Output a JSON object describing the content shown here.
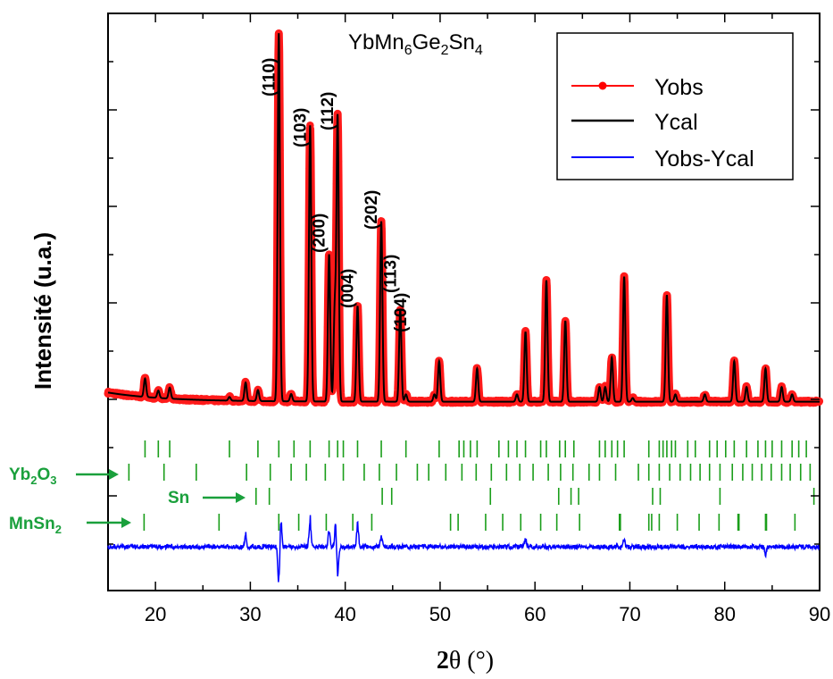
{
  "chart_data": {
    "type": "line",
    "title": "YbMn6Ge2Sn4",
    "title_parts": {
      "base1": "YbMn",
      "sub1": "6",
      "base2": "Ge",
      "sub2": "2",
      "base3": "Sn",
      "sub3": "4"
    },
    "xlabel": "2θ (°)",
    "xlabel_parts": {
      "bold": "2",
      "greek": "θ",
      "rest": " (°)"
    },
    "ylabel": "Intensité (u.a.)",
    "xlim": [
      15,
      90
    ],
    "x_ticks": [
      20,
      30,
      40,
      50,
      60,
      70,
      80,
      90
    ],
    "legend": {
      "position": "top-right",
      "entries": [
        {
          "label": "Yobs",
          "color": "#ff0000"
        },
        {
          "label": "Ycal",
          "color": "#000000"
        },
        {
          "label": "Yobs-Ycal",
          "color": "#0000ff"
        }
      ]
    },
    "background_level": 0.03,
    "peaks": [
      {
        "x": 18.9,
        "y": 0.05
      },
      {
        "x": 20.3,
        "y": 0.02
      },
      {
        "x": 21.5,
        "y": 0.03
      },
      {
        "x": 27.8,
        "y": 0.01
      },
      {
        "x": 29.5,
        "y": 0.05
      },
      {
        "x": 30.8,
        "y": 0.03
      },
      {
        "x": 33.0,
        "y": 1.0
      },
      {
        "x": 34.3,
        "y": 0.02
      },
      {
        "x": 36.3,
        "y": 0.75
      },
      {
        "x": 38.3,
        "y": 0.4
      },
      {
        "x": 38.9,
        "y": 0.25
      },
      {
        "x": 39.2,
        "y": 0.77
      },
      {
        "x": 41.3,
        "y": 0.26
      },
      {
        "x": 43.8,
        "y": 0.49
      },
      {
        "x": 45.8,
        "y": 0.25
      },
      {
        "x": 46.4,
        "y": 0.02
      },
      {
        "x": 49.4,
        "y": 0.02
      },
      {
        "x": 49.9,
        "y": 0.11
      },
      {
        "x": 53.9,
        "y": 0.09
      },
      {
        "x": 58.1,
        "y": 0.02
      },
      {
        "x": 59.0,
        "y": 0.19
      },
      {
        "x": 61.2,
        "y": 0.33
      },
      {
        "x": 63.2,
        "y": 0.22
      },
      {
        "x": 66.8,
        "y": 0.04
      },
      {
        "x": 67.4,
        "y": 0.04
      },
      {
        "x": 68.1,
        "y": 0.12
      },
      {
        "x": 69.4,
        "y": 0.34
      },
      {
        "x": 70.3,
        "y": 0.01
      },
      {
        "x": 73.9,
        "y": 0.29
      },
      {
        "x": 74.8,
        "y": 0.02
      },
      {
        "x": 77.9,
        "y": 0.02
      },
      {
        "x": 81.0,
        "y": 0.11
      },
      {
        "x": 82.3,
        "y": 0.04
      },
      {
        "x": 84.3,
        "y": 0.09
      },
      {
        "x": 86.0,
        "y": 0.04
      },
      {
        "x": 87.1,
        "y": 0.02
      }
    ],
    "peak_labels": [
      {
        "text": "(110)",
        "x": 33.0
      },
      {
        "text": "(103)",
        "x": 36.3
      },
      {
        "text": "(112)",
        "x": 39.2
      },
      {
        "text": "(200)",
        "x": 38.3
      },
      {
        "text": "(004)",
        "x": 41.3
      },
      {
        "text": "(202)",
        "x": 43.8
      },
      {
        "text": "(113)",
        "x": 45.8
      },
      {
        "text": "(104)",
        "x": 46.9
      }
    ],
    "difference_peaks": [
      {
        "x": 29.5,
        "y": 0.03
      },
      {
        "x": 33.0,
        "y": -0.1
      },
      {
        "x": 33.2,
        "y": 0.08
      },
      {
        "x": 36.3,
        "y": 0.07
      },
      {
        "x": 38.3,
        "y": 0.05
      },
      {
        "x": 39.2,
        "y": -0.08
      },
      {
        "x": 39.0,
        "y": 0.06
      },
      {
        "x": 41.3,
        "y": 0.06
      },
      {
        "x": 43.8,
        "y": 0.03
      },
      {
        "x": 59.0,
        "y": 0.02
      },
      {
        "x": 69.4,
        "y": 0.02
      },
      {
        "x": 84.3,
        "y": -0.02
      }
    ],
    "bragg_phases": [
      {
        "label": "",
        "color": "#1a9e1a",
        "positions": [
          18.9,
          20.3,
          21.5,
          27.8,
          30.8,
          33.0,
          34.6,
          36.3,
          38.3,
          39.2,
          39.8,
          41.3,
          43.8,
          46.4,
          49.9,
          52.0,
          52.5,
          53.2,
          53.9,
          56.2,
          57.2,
          58.1,
          59.0,
          60.6,
          61.2,
          62.6,
          63.2,
          64.1,
          66.8,
          67.4,
          68.1,
          68.7,
          69.4,
          72.0,
          73.1,
          73.5,
          73.9,
          74.4,
          74.8,
          76.1,
          76.9,
          78.4,
          79.2,
          80.1,
          81.0,
          82.3,
          83.5,
          84.3,
          85.0,
          86.0,
          87.1,
          87.8,
          88.6
        ]
      },
      {
        "label": "Yb2O3",
        "label_parts": {
          "base1": "Yb",
          "sub1": "2",
          "base2": "O",
          "sub2": "3"
        },
        "color": "#1a9e1a",
        "positions": [
          17.2,
          20.9,
          24.3,
          29.6,
          32.1,
          34.3,
          35.9,
          37.9,
          39.8,
          42.0,
          43.6,
          45.4,
          47.6,
          48.8,
          50.6,
          52.3,
          53.8,
          55.4,
          57.0,
          58.4,
          59.8,
          61.4,
          62.7,
          64.0,
          65.7,
          66.8,
          68.5,
          70.9,
          72.0,
          73.1,
          74.2,
          75.3,
          76.4,
          77.4,
          78.4,
          79.5,
          80.8,
          81.9,
          82.9,
          83.9,
          84.9,
          86.0,
          86.9,
          88.0,
          89.0
        ]
      },
      {
        "label": "Sn",
        "color": "#1a9e1a",
        "positions": [
          30.6,
          32.0,
          43.9,
          44.9,
          55.3,
          62.5,
          63.8,
          64.6,
          72.4,
          73.2,
          79.5,
          89.4
        ]
      },
      {
        "label": "MnSn2",
        "label_parts": {
          "base1": "MnSn",
          "sub1": "2"
        },
        "color": "#1a9e1a",
        "positions": [
          18.8,
          26.7,
          33.0,
          35.1,
          38.0,
          40.8,
          42.8,
          51.1,
          51.9,
          54.8,
          56.6,
          58.5,
          60.6,
          62.3,
          64.7,
          68.9,
          69.0,
          72.0,
          72.3,
          73.1,
          75.0,
          77.3,
          79.4,
          81.4,
          81.5,
          84.3,
          84.4,
          87.4
        ]
      }
    ],
    "grid": false
  }
}
